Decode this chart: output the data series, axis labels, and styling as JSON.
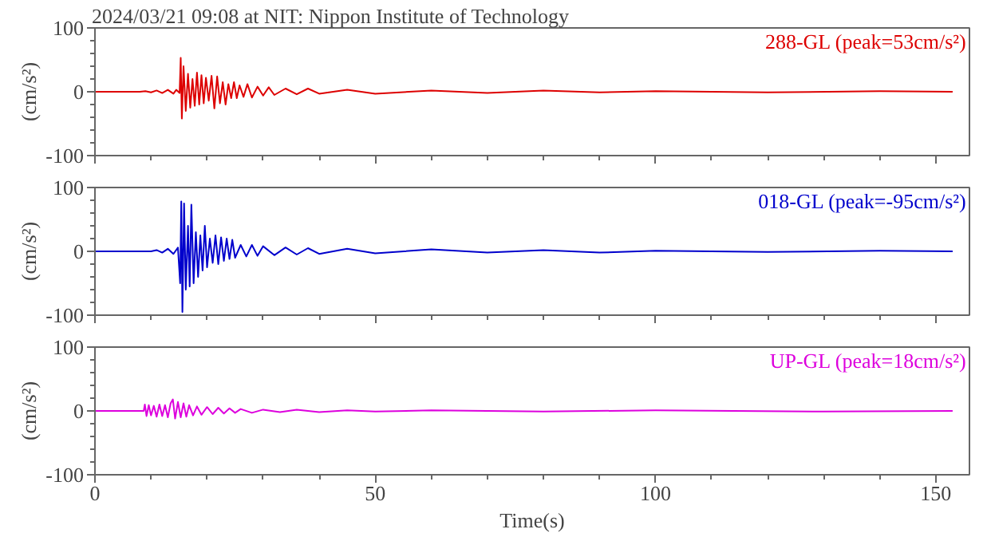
{
  "chart_data": [
    {
      "type": "line",
      "title": "2024/03/21 09:08 at NIT: Nippon Institute of Technology",
      "ylabel": "(cm/s²)",
      "annotations": [
        "288-GL (peak=53cm/s²)"
      ],
      "tick_labels": "y",
      "xlim": [
        0,
        156
      ],
      "xticks": [
        0,
        {
          "value": 10,
          "label": null
        },
        {
          "value": 20,
          "label": null
        },
        {
          "value": 30,
          "label": null
        },
        {
          "value": 40,
          "label": null
        },
        50,
        {
          "value": 60,
          "label": null
        },
        {
          "value": 70,
          "label": null
        },
        {
          "value": 80,
          "label": null
        },
        {
          "value": 90,
          "label": null
        },
        100,
        {
          "value": 110,
          "label": null
        },
        {
          "value": 120,
          "label": null
        },
        {
          "value": 130,
          "label": null
        },
        {
          "value": 140,
          "label": null
        },
        150
      ],
      "ylim": [
        -100,
        100
      ],
      "yticks": [
        -100,
        {
          "value": -80,
          "label": null
        },
        {
          "value": -60,
          "label": null
        },
        {
          "value": -40,
          "label": null
        },
        {
          "value": -20,
          "label": null
        },
        0,
        {
          "value": 20,
          "label": null
        },
        {
          "value": 40,
          "label": null
        },
        {
          "value": 60,
          "label": null
        },
        {
          "value": 80,
          "label": null
        },
        100
      ],
      "series": [
        {
          "color": "#dd0000",
          "x": [
            0,
            8,
            9,
            10,
            11,
            12,
            13,
            14,
            14.5,
            15.1,
            15.3,
            15.5,
            15.8,
            16.2,
            16.6,
            17,
            17.4,
            17.8,
            18.2,
            18.6,
            19,
            19.4,
            19.8,
            20.3,
            20.8,
            21.3,
            21.8,
            22.3,
            22.8,
            23.3,
            23.8,
            24.3,
            24.8,
            25.3,
            25.8,
            26.5,
            27.2,
            28,
            29,
            30,
            31,
            32,
            34,
            36,
            38,
            40,
            45,
            50,
            60,
            70,
            80,
            90,
            100,
            120,
            140,
            153
          ],
          "values": [
            0,
            0,
            1,
            -1,
            2,
            -2,
            3,
            -3,
            3,
            -2,
            53,
            -42,
            40,
            -30,
            28,
            -25,
            20,
            -22,
            30,
            -20,
            26,
            -18,
            22,
            -14,
            25,
            -26,
            24,
            -18,
            15,
            -20,
            12,
            -10,
            15,
            -10,
            10,
            -8,
            12,
            -9,
            8,
            -6,
            7,
            -5,
            5,
            -4,
            5,
            -3,
            3,
            -3,
            2,
            -2,
            2,
            -1,
            1,
            -1,
            1,
            0
          ]
        }
      ]
    },
    {
      "type": "line",
      "ylabel": "(cm/s²)",
      "annotations": [
        "018-GL (peak=-95cm/s²)"
      ],
      "tick_labels": "y",
      "xlim": [
        0,
        156
      ],
      "xticks": [
        0,
        {
          "value": 10,
          "label": null
        },
        {
          "value": 20,
          "label": null
        },
        {
          "value": 30,
          "label": null
        },
        {
          "value": 40,
          "label": null
        },
        50,
        {
          "value": 60,
          "label": null
        },
        {
          "value": 70,
          "label": null
        },
        {
          "value": 80,
          "label": null
        },
        {
          "value": 90,
          "label": null
        },
        100,
        {
          "value": 110,
          "label": null
        },
        {
          "value": 120,
          "label": null
        },
        {
          "value": 130,
          "label": null
        },
        {
          "value": 140,
          "label": null
        },
        150
      ],
      "ylim": [
        -100,
        100
      ],
      "yticks": [
        -100,
        {
          "value": -80,
          "label": null
        },
        {
          "value": -60,
          "label": null
        },
        {
          "value": -40,
          "label": null
        },
        {
          "value": -20,
          "label": null
        },
        0,
        {
          "value": 20,
          "label": null
        },
        {
          "value": 40,
          "label": null
        },
        {
          "value": 60,
          "label": null
        },
        {
          "value": 80,
          "label": null
        },
        100
      ],
      "series": [
        {
          "color": "#0000cc",
          "x": [
            0,
            10,
            11,
            12,
            13,
            14,
            14.8,
            15.2,
            15.4,
            15.6,
            15.9,
            16.2,
            16.6,
            16.9,
            17.2,
            17.6,
            18,
            18.4,
            18.8,
            19.2,
            19.6,
            20,
            20.5,
            21,
            21.5,
            22,
            22.5,
            23,
            23.5,
            24,
            24.5,
            25,
            26,
            27,
            28,
            29,
            30,
            32,
            34,
            36,
            38,
            40,
            45,
            50,
            60,
            70,
            80,
            90,
            100,
            120,
            140,
            153
          ],
          "values": [
            0,
            0,
            2,
            -2,
            4,
            -4,
            6,
            -50,
            78,
            -95,
            75,
            -60,
            40,
            -55,
            73,
            -50,
            30,
            -40,
            25,
            -30,
            40,
            -25,
            20,
            -18,
            25,
            -20,
            22,
            -15,
            20,
            -12,
            18,
            -10,
            10,
            -8,
            10,
            -7,
            8,
            -6,
            6,
            -5,
            5,
            -4,
            4,
            -3,
            3,
            -2,
            2,
            -2,
            1,
            -1,
            1,
            0
          ]
        }
      ]
    },
    {
      "type": "line",
      "xlabel": "Time(s)",
      "ylabel": "(cm/s²)",
      "annotations": [
        "UP-GL (peak=18cm/s²)"
      ],
      "xlim": [
        0,
        156
      ],
      "xticks": [
        0,
        {
          "value": 10,
          "label": null
        },
        {
          "value": 20,
          "label": null
        },
        {
          "value": 30,
          "label": null
        },
        {
          "value": 40,
          "label": null
        },
        50,
        {
          "value": 60,
          "label": null
        },
        {
          "value": 70,
          "label": null
        },
        {
          "value": 80,
          "label": null
        },
        {
          "value": 90,
          "label": null
        },
        100,
        {
          "value": 110,
          "label": null
        },
        {
          "value": 120,
          "label": null
        },
        {
          "value": 130,
          "label": null
        },
        {
          "value": 140,
          "label": null
        },
        150
      ],
      "ylim": [
        -100,
        100
      ],
      "yticks": [
        -100,
        {
          "value": -80,
          "label": null
        },
        {
          "value": -60,
          "label": null
        },
        {
          "value": -40,
          "label": null
        },
        {
          "value": -20,
          "label": null
        },
        0,
        {
          "value": 20,
          "label": null
        },
        {
          "value": 40,
          "label": null
        },
        {
          "value": 60,
          "label": null
        },
        {
          "value": 80,
          "label": null
        },
        100
      ],
      "series": [
        {
          "color": "#dd00dd",
          "x": [
            0,
            8.7,
            8.9,
            9.2,
            9.6,
            10,
            10.5,
            11,
            11.5,
            12,
            12.5,
            13,
            13.5,
            13.9,
            14.3,
            14.8,
            15.3,
            15.8,
            16.3,
            16.8,
            17.5,
            18.2,
            19,
            20,
            21,
            22,
            23,
            24,
            25,
            26,
            28,
            30,
            33,
            36,
            40,
            45,
            50,
            60,
            80,
            100,
            130,
            153
          ],
          "values": [
            0,
            0,
            10,
            -8,
            9,
            -7,
            8,
            -9,
            10,
            -8,
            9,
            -10,
            12,
            18,
            -12,
            14,
            -10,
            12,
            -9,
            9,
            -7,
            7,
            -6,
            6,
            -5,
            5,
            -4,
            4,
            -3,
            3,
            -3,
            2,
            -2,
            2,
            -2,
            1,
            -1,
            1,
            -1,
            1,
            -1,
            0
          ]
        }
      ]
    }
  ]
}
